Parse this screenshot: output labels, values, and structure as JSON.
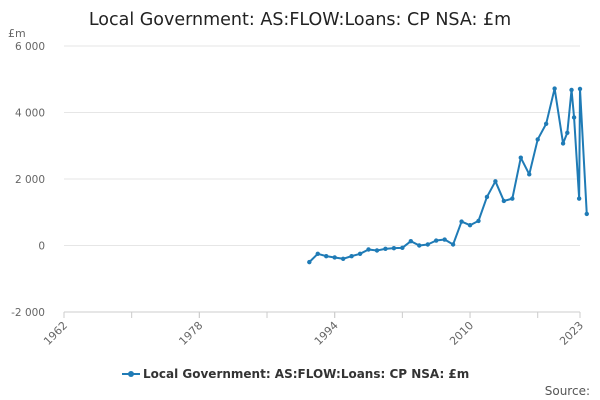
{
  "chart_data": {
    "type": "line",
    "title": "Local Government: AS:FLOW:Loans: CP NSA: £m",
    "y_unit_label": "£m",
    "xlabel": "",
    "ylabel": "",
    "xlim": [
      1962,
      2023
    ],
    "ylim": [
      -2000,
      6000
    ],
    "x_ticks": [
      {
        "value": 1962,
        "label": "1962"
      },
      {
        "value": 1978,
        "label": "1978"
      },
      {
        "value": 1994,
        "label": "1994"
      },
      {
        "value": 2010,
        "label": "2010"
      },
      {
        "value": 2023,
        "label": "2023"
      }
    ],
    "y_ticks": [
      {
        "value": -2000,
        "label": "-2 000"
      },
      {
        "value": 0,
        "label": "0"
      },
      {
        "value": 2000,
        "label": "2 000"
      },
      {
        "value": 4000,
        "label": "4 000"
      },
      {
        "value": 6000,
        "label": "6 000"
      }
    ],
    "grid": "horizontal",
    "legend_position": "bottom",
    "color": "#1f7bb6",
    "series": [
      {
        "name": "Local Government: AS:FLOW:Loans: CP NSA: £m",
        "x": [
          1991,
          1992,
          1993,
          1994,
          1995,
          1996,
          1997,
          1998,
          1999,
          2000,
          2001,
          2002,
          2003,
          2004,
          2005,
          2006,
          2007,
          2008,
          2009,
          2010,
          2011,
          2012,
          2013,
          2014,
          2015,
          2016,
          2017,
          2018,
          2019,
          2020,
          2021,
          2022,
          2023
        ],
        "values": [
          -500,
          -250,
          -320,
          -360,
          -400,
          -320,
          -250,
          -120,
          -150,
          -100,
          -80,
          -70,
          130,
          0,
          30,
          150,
          180,
          30,
          720,
          610,
          740,
          1460,
          1930,
          1340,
          1410,
          2640,
          2140,
          3190,
          3660,
          4720,
          3070,
          4680,
          4710
        ]
      }
    ],
    "tail_points": [
      {
        "x": 2021.5,
        "value": 3390
      },
      {
        "x": 2022.3,
        "value": 3850
      },
      {
        "x": 2022.9,
        "value": 1410
      },
      {
        "x": 2023.8,
        "value": 950
      }
    ]
  },
  "source_label": "Source:"
}
